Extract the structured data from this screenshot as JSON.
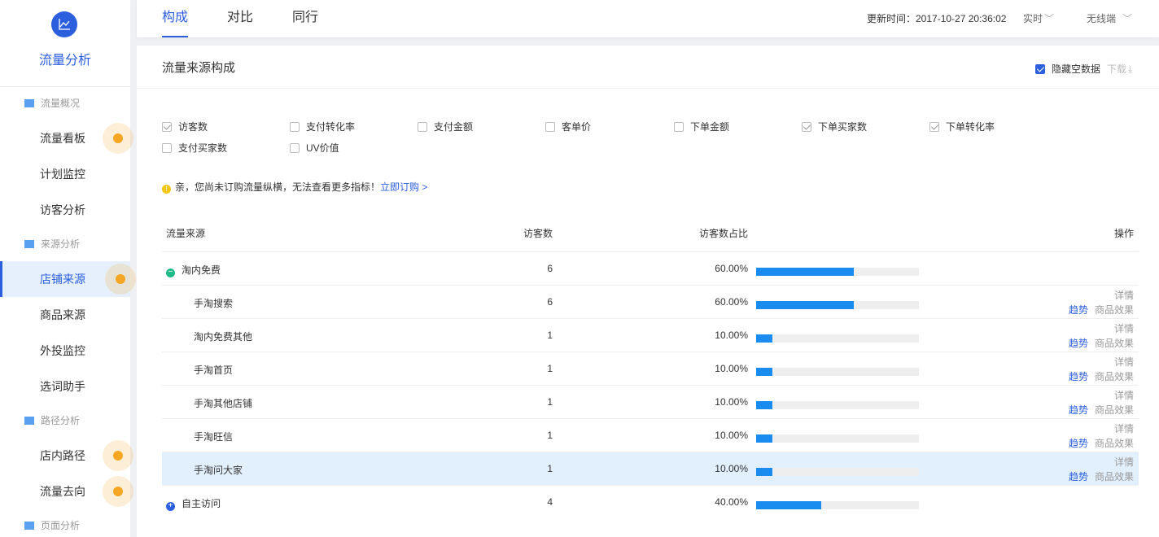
{
  "sidebar": {
    "title": "流量分析",
    "logo_icon": "line-chart-icon",
    "sections": [
      {
        "label": "流量概况",
        "items": [
          {
            "label": "流量看板",
            "dot": true
          },
          {
            "label": "计划监控",
            "dot": false
          },
          {
            "label": "访客分析",
            "dot": false
          }
        ]
      },
      {
        "label": "来源分析",
        "items": [
          {
            "label": "店铺来源",
            "dot": true,
            "active": true
          },
          {
            "label": "商品来源",
            "dot": false
          },
          {
            "label": "外投监控",
            "dot": false
          },
          {
            "label": "选词助手",
            "dot": false
          }
        ]
      },
      {
        "label": "路径分析",
        "items": [
          {
            "label": "店内路径",
            "dot": true
          },
          {
            "label": "流量去向",
            "dot": true
          }
        ]
      },
      {
        "label": "页面分析",
        "items": []
      }
    ]
  },
  "topbar": {
    "tabs": [
      "构成",
      "对比",
      "同行"
    ],
    "active_tab": "构成",
    "update_time": "更新时间：2017-10-27 20:36:02",
    "period": "实时",
    "device": "无线端"
  },
  "card": {
    "title": "流量来源构成",
    "hide_empty": "隐藏空数据",
    "hide_empty_checked": true,
    "download": "下载",
    "metrics": [
      {
        "label": "访客数",
        "checked": true
      },
      {
        "label": "支付转化率",
        "checked": false
      },
      {
        "label": "支付金额",
        "checked": false
      },
      {
        "label": "客单价",
        "checked": false
      },
      {
        "label": "下单金额",
        "checked": false
      },
      {
        "label": "下单买家数",
        "checked": true
      },
      {
        "label": "下单转化率",
        "checked": true
      },
      {
        "label": "支付买家数",
        "checked": false
      },
      {
        "label": "UV价值",
        "checked": false
      }
    ],
    "notice": "亲，您尚未订购流量纵横，无法查看更多指标！",
    "notice_link": "立即订购 >",
    "columns": {
      "source": "流量来源",
      "visitors": "访客数",
      "share": "访客数占比",
      "ops": "操作"
    },
    "ops": {
      "detail": "详情",
      "trend": "趋势",
      "effect": "商品效果"
    },
    "rows": [
      {
        "name": "淘内免费",
        "visitors": "6",
        "share": "60.00%",
        "share_value": 60,
        "level": "group",
        "state": "expanded"
      },
      {
        "name": "手淘搜索",
        "visitors": "6",
        "share": "60.00%",
        "share_value": 60,
        "level": "sub"
      },
      {
        "name": "淘内免费其他",
        "visitors": "1",
        "share": "10.00%",
        "share_value": 10,
        "level": "sub"
      },
      {
        "name": "手淘首页",
        "visitors": "1",
        "share": "10.00%",
        "share_value": 10,
        "level": "sub"
      },
      {
        "name": "手淘其他店铺",
        "visitors": "1",
        "share": "10.00%",
        "share_value": 10,
        "level": "sub"
      },
      {
        "name": "手淘旺信",
        "visitors": "1",
        "share": "10.00%",
        "share_value": 10,
        "level": "sub"
      },
      {
        "name": "手淘问大家",
        "visitors": "1",
        "share": "10.00%",
        "share_value": 10,
        "level": "sub",
        "highlighted": true
      },
      {
        "name": "自主访问",
        "visitors": "4",
        "share": "40.00%",
        "share_value": 40,
        "level": "group",
        "state": "collapsed"
      }
    ]
  },
  "colors": {
    "accent": "#2c5fde",
    "bar": "#1a8cf0",
    "dot": "#f5a623",
    "expand": "#1fba8a"
  }
}
